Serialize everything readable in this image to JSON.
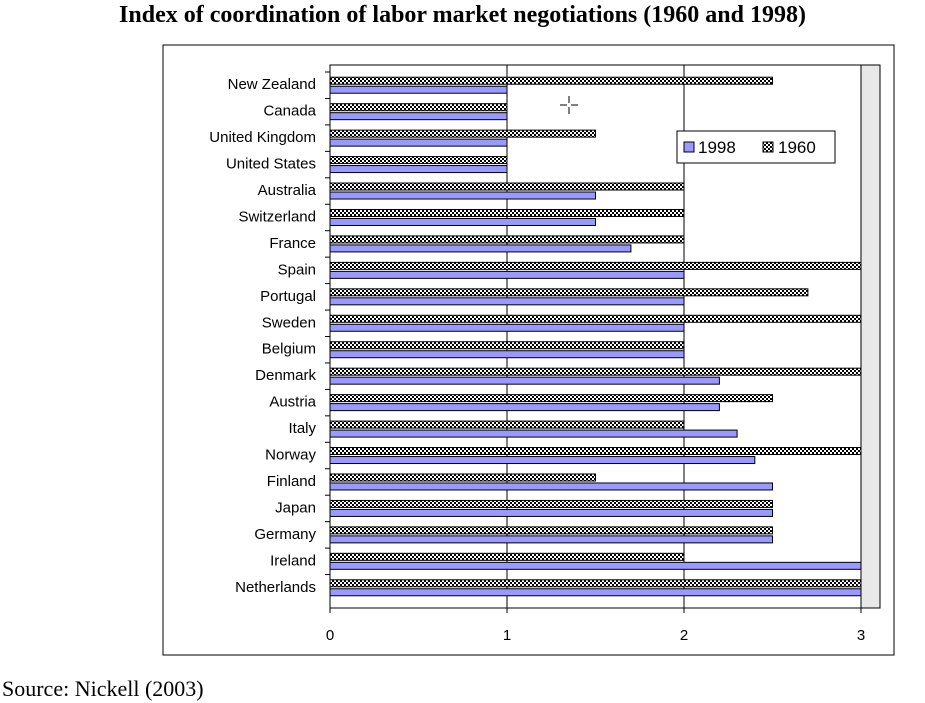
{
  "chart_data": {
    "type": "bar",
    "orientation": "horizontal",
    "title": "Index of coordination of labor market negotiations (1960 and 1998)",
    "categories": [
      "New Zealand",
      "Canada",
      "United Kingdom",
      "United States",
      "Australia",
      "Switzerland",
      "France",
      "Spain",
      "Portugal",
      "Sweden",
      "Belgium",
      "Denmark",
      "Austria",
      "Italy",
      "Norway",
      "Finland",
      "Japan",
      "Germany",
      "Ireland",
      "Netherlands"
    ],
    "series": [
      {
        "name": "1998",
        "color": "#9999ff",
        "values": [
          1,
          1,
          1,
          1,
          1.5,
          1.5,
          1.7,
          2,
          2,
          2,
          2,
          2.2,
          2.2,
          2.3,
          2.4,
          2.5,
          2.5,
          2.5,
          3,
          3
        ]
      },
      {
        "name": "1960",
        "color": "#ffffff",
        "values": [
          2.5,
          1,
          1.5,
          1,
          2,
          2,
          2,
          3,
          2.7,
          3,
          2,
          3,
          2.5,
          2,
          3,
          1.5,
          2.5,
          2.5,
          2,
          3
        ]
      }
    ],
    "xlim": [
      0,
      3
    ],
    "x_ticks": [
      "0",
      "1",
      "2",
      "3"
    ],
    "grid": "vertical",
    "legend_position": "top-right"
  },
  "source": "Source: Nickell (2003)",
  "cursor_icon": "crosshair-move-icon"
}
